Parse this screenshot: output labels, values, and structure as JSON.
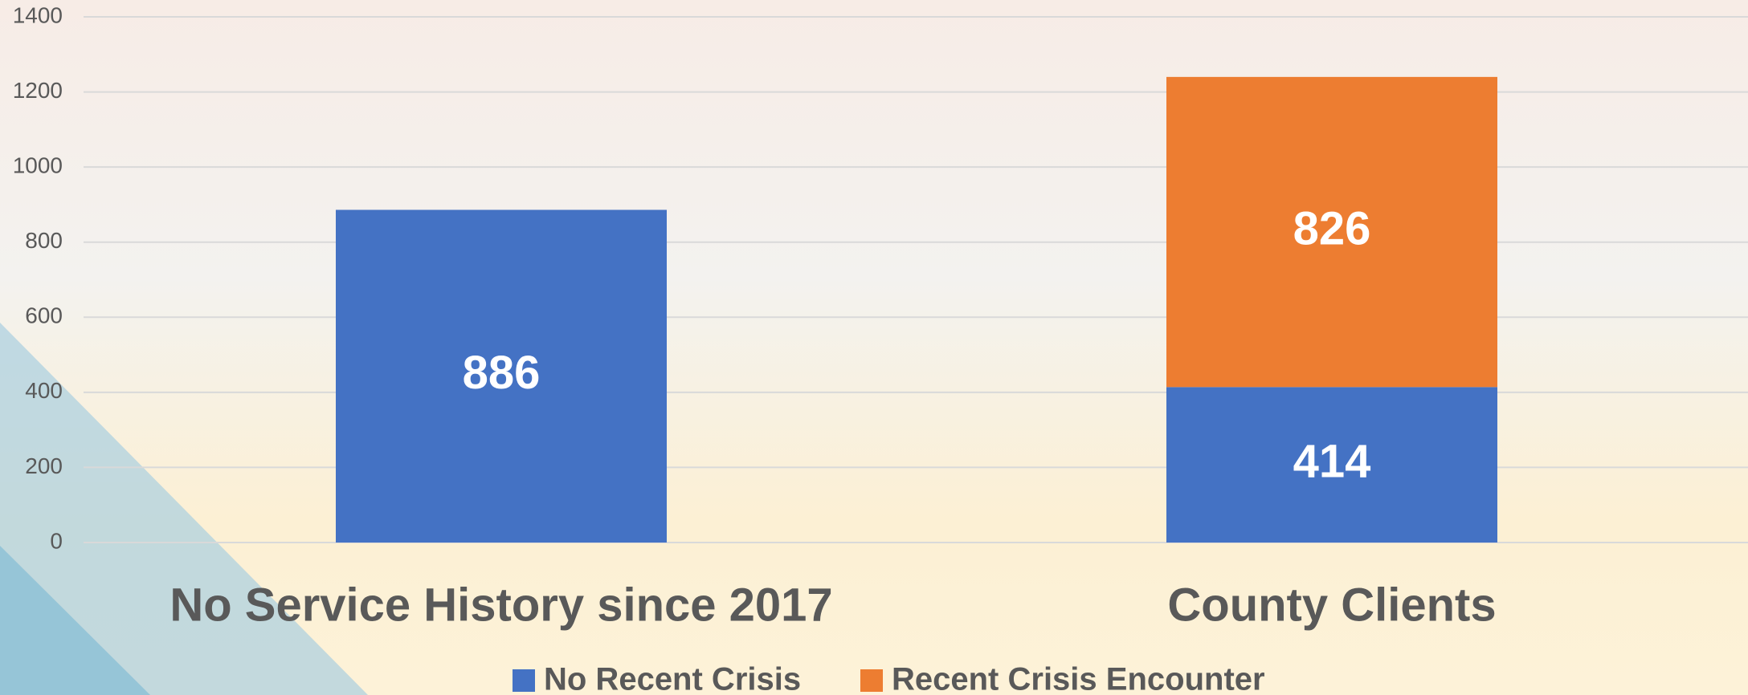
{
  "chart_data": {
    "type": "stacked_bar",
    "categories": [
      "No Service History since 2017",
      "County Clients"
    ],
    "series": [
      {
        "name": "No Recent Crisis",
        "color": "#4472c4",
        "values": [
          886,
          414
        ]
      },
      {
        "name": "Recent Crisis Encounter",
        "color": "#ed7d31",
        "values": [
          null,
          826
        ]
      }
    ],
    "ylim": [
      0,
      1400
    ],
    "yticks": [
      0,
      200,
      400,
      600,
      800,
      1000,
      1200,
      1400
    ],
    "grid": true,
    "legend": "bottom"
  }
}
